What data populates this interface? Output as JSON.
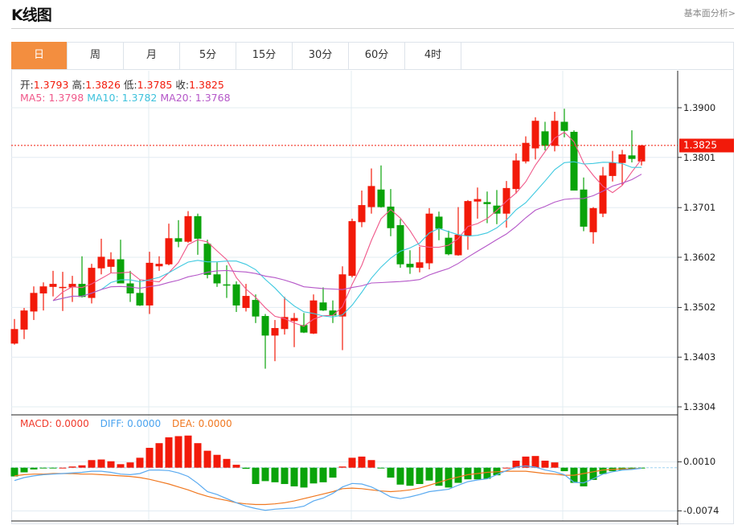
{
  "header": {
    "title": "K线图",
    "link": "基本面分析>"
  },
  "tabs": [
    "日",
    "周",
    "月",
    "5分",
    "15分",
    "30分",
    "60分",
    "4时"
  ],
  "active_tab": 0,
  "info": {
    "open_label": "开:",
    "open": "1.3793",
    "high_label": "高:",
    "high": "1.3826",
    "low_label": "低:",
    "low": "1.3785",
    "close_label": "收:",
    "close": "1.3825",
    "ma5": "MA5: 1.3798",
    "ma10": "MA10: 1.3782",
    "ma20": "MA20: 1.3768"
  },
  "macd_info": {
    "macd": "MACD: 0.0000",
    "diff": "DIFF: 0.0000",
    "dea": "DEA: 0.0000"
  },
  "price_axis": [
    "1.3900",
    "1.3801",
    "1.3701",
    "1.3602",
    "1.3502",
    "1.3403",
    "1.3304"
  ],
  "macd_axis": [
    "0.0010",
    "-0.0074"
  ],
  "last_price": "1.3825",
  "colors": {
    "up": "#f21a0a",
    "down": "#0aa30a",
    "ma5": "#f0588a",
    "ma10": "#3ec9e0",
    "ma20": "#b557c8",
    "diff": "#5aaaf0",
    "dea": "#f07820",
    "grid": "#e3ecf2"
  },
  "chart_data": {
    "type": "candlestick",
    "ma_periods": [
      5,
      10,
      20
    ],
    "ohlc": [
      [
        1.343,
        1.3479,
        1.3428,
        1.3459
      ],
      [
        1.3458,
        1.3501,
        1.3439,
        1.3496
      ],
      [
        1.3494,
        1.3544,
        1.3477,
        1.3531
      ],
      [
        1.353,
        1.3552,
        1.3496,
        1.3544
      ],
      [
        1.3543,
        1.3575,
        1.3524,
        1.3549
      ],
      [
        1.3541,
        1.3573,
        1.3495,
        1.3543
      ],
      [
        1.3542,
        1.3565,
        1.3513,
        1.3549
      ],
      [
        1.3549,
        1.3604,
        1.3522,
        1.3523
      ],
      [
        1.3521,
        1.3589,
        1.351,
        1.3581
      ],
      [
        1.358,
        1.3639,
        1.3568,
        1.3603
      ],
      [
        1.3583,
        1.3612,
        1.357,
        1.3598
      ],
      [
        1.3598,
        1.3637,
        1.355,
        1.355
      ],
      [
        1.355,
        1.3575,
        1.3513,
        1.353
      ],
      [
        1.3531,
        1.3557,
        1.3505,
        1.3506
      ],
      [
        1.3506,
        1.3613,
        1.3489,
        1.3591
      ],
      [
        1.3584,
        1.3604,
        1.3575,
        1.3589
      ],
      [
        1.3588,
        1.3669,
        1.3586,
        1.364
      ],
      [
        1.364,
        1.3676,
        1.3622,
        1.3633
      ],
      [
        1.3633,
        1.3694,
        1.3631,
        1.3684
      ],
      [
        1.3684,
        1.3689,
        1.3607,
        1.3639
      ],
      [
        1.3629,
        1.3637,
        1.356,
        1.3567
      ],
      [
        1.3568,
        1.3592,
        1.3543,
        1.355
      ],
      [
        1.3548,
        1.3586,
        1.3521,
        1.3546
      ],
      [
        1.3548,
        1.3554,
        1.3493,
        1.3506
      ],
      [
        1.3501,
        1.3549,
        1.3494,
        1.3525
      ],
      [
        1.3517,
        1.3528,
        1.3471,
        1.3484
      ],
      [
        1.3485,
        1.3489,
        1.338,
        1.3446
      ],
      [
        1.3446,
        1.3477,
        1.3395,
        1.3461
      ],
      [
        1.3459,
        1.3523,
        1.3448,
        1.3483
      ],
      [
        1.3475,
        1.3491,
        1.3423,
        1.3481
      ],
      [
        1.3467,
        1.3491,
        1.3451,
        1.3452
      ],
      [
        1.345,
        1.3528,
        1.3449,
        1.3516
      ],
      [
        1.3512,
        1.3542,
        1.3495,
        1.3496
      ],
      [
        1.3496,
        1.3516,
        1.3471,
        1.3486
      ],
      [
        1.3484,
        1.3584,
        1.3417,
        1.3568
      ],
      [
        1.3565,
        1.3679,
        1.3562,
        1.3674
      ],
      [
        1.3672,
        1.3735,
        1.3662,
        1.3706
      ],
      [
        1.3702,
        1.3779,
        1.3689,
        1.3744
      ],
      [
        1.3737,
        1.3785,
        1.3701,
        1.3702
      ],
      [
        1.3703,
        1.3738,
        1.3644,
        1.366
      ],
      [
        1.3666,
        1.3678,
        1.3581,
        1.3588
      ],
      [
        1.3589,
        1.3616,
        1.3569,
        1.3582
      ],
      [
        1.3581,
        1.3623,
        1.3572,
        1.3592
      ],
      [
        1.359,
        1.37,
        1.3578,
        1.3689
      ],
      [
        1.3683,
        1.3693,
        1.3636,
        1.3659
      ],
      [
        1.3641,
        1.3655,
        1.3606,
        1.3608
      ],
      [
        1.3606,
        1.3702,
        1.3605,
        1.3647
      ],
      [
        1.3645,
        1.3716,
        1.3617,
        1.3714
      ],
      [
        1.3713,
        1.3741,
        1.3679,
        1.3718
      ],
      [
        1.3712,
        1.3733,
        1.367,
        1.3708
      ],
      [
        1.3705,
        1.3736,
        1.3668,
        1.3689
      ],
      [
        1.3689,
        1.3754,
        1.3661,
        1.374
      ],
      [
        1.3738,
        1.3809,
        1.3729,
        1.3795
      ],
      [
        1.3793,
        1.3843,
        1.3789,
        1.383
      ],
      [
        1.3819,
        1.3881,
        1.3797,
        1.3874
      ],
      [
        1.3853,
        1.3872,
        1.3815,
        1.3824
      ],
      [
        1.3824,
        1.3892,
        1.3813,
        1.3874
      ],
      [
        1.3872,
        1.3898,
        1.3841,
        1.3854
      ],
      [
        1.3852,
        1.3855,
        1.3735,
        1.3735
      ],
      [
        1.3737,
        1.3761,
        1.3654,
        1.3663
      ],
      [
        1.3652,
        1.3702,
        1.3629,
        1.37
      ],
      [
        1.3689,
        1.3782,
        1.3682,
        1.3765
      ],
      [
        1.3764,
        1.3814,
        1.3753,
        1.3791
      ],
      [
        1.379,
        1.3816,
        1.3746,
        1.3807
      ],
      [
        1.3805,
        1.3855,
        1.3791,
        1.3798
      ],
      [
        1.3793,
        1.3826,
        1.3785,
        1.3825
      ]
    ],
    "macd_hist": [
      -0.0015,
      -0.0008,
      -0.0003,
      -0.0001,
      -0.0001,
      0.0,
      0.0002,
      0.0004,
      0.0013,
      0.0014,
      0.0011,
      0.0006,
      0.0009,
      0.0017,
      0.0034,
      0.0042,
      0.0052,
      0.0054,
      0.0055,
      0.0042,
      0.0029,
      0.0022,
      0.0015,
      0.0005,
      -0.0002,
      -0.0028,
      -0.0023,
      -0.0025,
      -0.0028,
      -0.0032,
      -0.0034,
      -0.0027,
      -0.0025,
      -0.0017,
      0.0002,
      0.0017,
      0.0019,
      0.0013,
      -0.0001,
      -0.0017,
      -0.0029,
      -0.0031,
      -0.0028,
      -0.0022,
      -0.0031,
      -0.0034,
      -0.0026,
      -0.002,
      -0.002,
      -0.0019,
      -0.0013,
      0.0,
      0.0012,
      0.0019,
      0.002,
      0.0012,
      0.0009,
      -0.0006,
      -0.0026,
      -0.0032,
      -0.0021,
      -0.0011,
      -0.0006,
      -0.0004,
      -0.0003,
      -0.0001
    ],
    "diff": [
      -0.0022,
      -0.0017,
      -0.0014,
      -0.0012,
      -0.0011,
      -0.001,
      -0.0009,
      -0.0008,
      -0.0006,
      -0.0006,
      -0.0008,
      -0.0011,
      -0.0012,
      -0.001,
      -0.0004,
      -0.0004,
      -0.0005,
      -0.0009,
      -0.0015,
      -0.0027,
      -0.0041,
      -0.0046,
      -0.0053,
      -0.006,
      -0.0066,
      -0.007,
      -0.0073,
      -0.0071,
      -0.007,
      -0.0069,
      -0.0066,
      -0.0057,
      -0.0052,
      -0.0044,
      -0.0033,
      -0.0027,
      -0.0028,
      -0.0033,
      -0.0041,
      -0.005,
      -0.0053,
      -0.005,
      -0.0046,
      -0.0041,
      -0.0039,
      -0.0037,
      -0.003,
      -0.0024,
      -0.0021,
      -0.0019,
      -0.0012,
      -0.0005,
      0.0001,
      0.0003,
      0.0001,
      -0.0004,
      -0.0007,
      -0.0012,
      -0.0025,
      -0.0026,
      -0.0019,
      -0.0011,
      -0.0007,
      -0.0004,
      -0.0003,
      -0.0001
    ],
    "dea": [
      -0.0014,
      -0.0012,
      -0.0011,
      -0.0011,
      -0.001,
      -0.001,
      -0.001,
      -0.0011,
      -0.0011,
      -0.0012,
      -0.0013,
      -0.0014,
      -0.0015,
      -0.0017,
      -0.002,
      -0.0024,
      -0.0028,
      -0.0033,
      -0.0038,
      -0.0044,
      -0.0049,
      -0.0053,
      -0.0056,
      -0.006,
      -0.0062,
      -0.0063,
      -0.0063,
      -0.0062,
      -0.006,
      -0.0057,
      -0.0053,
      -0.0049,
      -0.0045,
      -0.0041,
      -0.0036,
      -0.0035,
      -0.0036,
      -0.0038,
      -0.004,
      -0.0041,
      -0.004,
      -0.0038,
      -0.0035,
      -0.003,
      -0.0025,
      -0.002,
      -0.0016,
      -0.0012,
      -0.001,
      -0.0008,
      -0.0007,
      -0.0006,
      -0.0006,
      -0.0006,
      -0.0008,
      -0.001,
      -0.0011,
      -0.0013,
      -0.0013,
      -0.001,
      -0.0007,
      -0.0004,
      -0.0003,
      -0.0002,
      -0.0002,
      -0.0001
    ]
  }
}
